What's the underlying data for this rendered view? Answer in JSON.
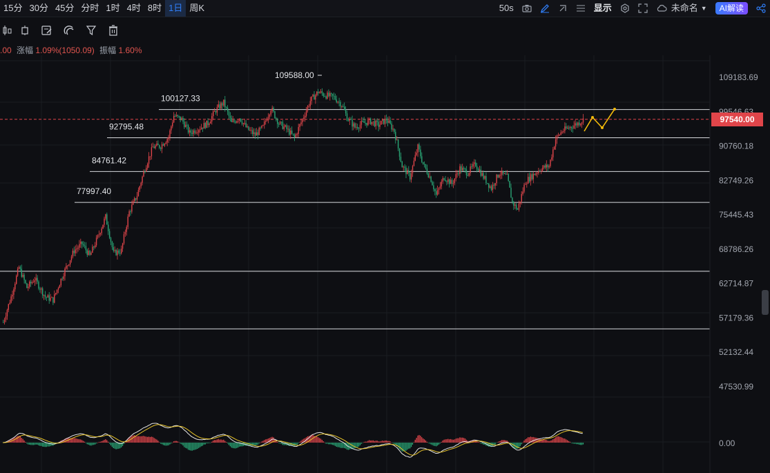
{
  "toolbar": {
    "timeframes": [
      "15分",
      "30分",
      "45分",
      "分时",
      "1时",
      "4时",
      "8时",
      "1日",
      "周K"
    ],
    "active_timeframe": "1日",
    "interval_label": "50s",
    "display_label": "显示",
    "unnamed_label": "未命名",
    "ai_label": "AI解读"
  },
  "info": {
    "price_prefix": ".00",
    "change_label": "涨幅",
    "change_value": "1.09%(1050.09)",
    "amplitude_label": "振幅",
    "amplitude_value": "1.60%"
  },
  "current_price": "97540.00",
  "colors": {
    "up": "#e0454a",
    "down": "#2aa676",
    "accent": "#2f7df6",
    "projection": "#f0b90b"
  },
  "chart_data": {
    "type": "candlestick",
    "price_axis_ticks": [
      "109183.69",
      "99546.63",
      "90760.18",
      "82749.26",
      "75445.43",
      "68786.26",
      "62714.87",
      "57179.36",
      "52132.44",
      "47530.99",
      "0.00"
    ],
    "annotations": [
      {
        "label": "109588.00",
        "type": "high-marker"
      }
    ],
    "levels": [
      {
        "label": "100127.33",
        "value": 100127.33
      },
      {
        "label": "92795.48",
        "value": 92795.48
      },
      {
        "label": "84761.42",
        "value": 84761.42
      },
      {
        "label": "77997.40",
        "value": 77997.4
      }
    ],
    "current_price_line": 97540.0,
    "indicator": "MACD"
  }
}
